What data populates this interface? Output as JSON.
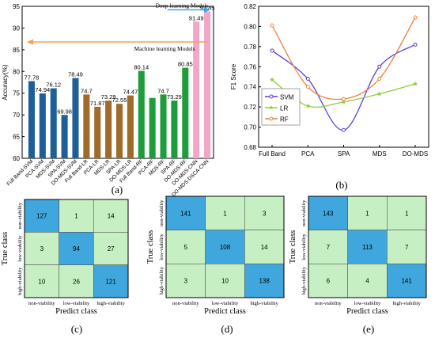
{
  "chart_data": [
    {
      "type": "bar",
      "panel_label": "(a)",
      "ylabel": "Accuracy(%)",
      "ylim": [
        60,
        95
      ],
      "yticks": [
        "60",
        "65",
        "70",
        "75",
        "80",
        "85",
        "90",
        "95"
      ],
      "annotations": {
        "ml": "Machine learning Models",
        "dl": "Deep learning Models"
      },
      "categories": [
        "Full Band-SVM",
        "PCA-SVM",
        "MDS-SVM",
        "SPA-SVM",
        "DO-MDS-SVM",
        "Full Band-LR",
        "PCA-LR",
        "MDS-LR",
        "SPA-LR",
        "DO-MDS-LR",
        "Full Band-RF",
        "PCA-RF",
        "MDS-RF",
        "SPA-RF",
        "DO-MDS-RF",
        "DO-MDS-CNN",
        "DO-MDS-DSCA-CNN"
      ],
      "values": [
        77.78,
        74.94,
        76.12,
        69.98,
        78.49,
        74.7,
        71.87,
        73.29,
        72.55,
        74.47,
        80.14,
        73.9,
        74.7,
        73.29,
        80.85,
        91.49,
        93.85
      ],
      "value_labels": [
        "77.78",
        "74.94",
        "76.12",
        "69.98",
        "78.49",
        "74.7",
        "71.87",
        "73.29",
        "72.55",
        "74.47",
        "80.14",
        "",
        "74.7",
        "73.29",
        "80.85",
        "91.49",
        "93.85"
      ],
      "colors": [
        "#1f5f99",
        "#1f5f99",
        "#1f5f99",
        "#1f5f99",
        "#1f5f99",
        "#a06a2a",
        "#a06a2a",
        "#a06a2a",
        "#a06a2a",
        "#a06a2a",
        "#1e9e3a",
        "#1e9e3a",
        "#1e9e3a",
        "#1e9e3a",
        "#1e9e3a",
        "#f4a6c8",
        "#f4a6c8"
      ]
    },
    {
      "type": "line",
      "panel_label": "(b)",
      "ylabel": "F1 Score",
      "ylim": [
        0.68,
        0.82
      ],
      "yticks": [
        "0.68",
        "0.70",
        "0.72",
        "0.74",
        "0.76",
        "0.78",
        "0.80",
        "0.82"
      ],
      "categories": [
        "Full Band",
        "PCA",
        "SPA",
        "MDS",
        "DO-MDS"
      ],
      "series": [
        {
          "name": "SVM",
          "color": "#5b3fd6",
          "marker": "circle",
          "values": [
            0.776,
            0.748,
            0.697,
            0.76,
            0.782
          ]
        },
        {
          "name": "LR",
          "color": "#8fcf3c",
          "marker": "star",
          "values": [
            0.747,
            0.721,
            0.725,
            0.733,
            0.743
          ]
        },
        {
          "name": "RF",
          "color": "#f0803c",
          "marker": "circle",
          "values": [
            0.801,
            0.74,
            0.728,
            0.748,
            0.809
          ]
        }
      ],
      "legend": "middle-left"
    },
    {
      "type": "heatmap",
      "panel_label": "(c)",
      "xlabel": "Predict class",
      "ylabel": "True class",
      "classes": [
        "non-viability",
        "low-viability",
        "high-viability"
      ],
      "matrix": [
        [
          127,
          1,
          14
        ],
        [
          3,
          94,
          27
        ],
        [
          10,
          26,
          121
        ]
      ]
    },
    {
      "type": "heatmap",
      "panel_label": "(d)",
      "xlabel": "Predict class",
      "ylabel": "True class",
      "classes": [
        "non-viability",
        "low-viability",
        "high-viability"
      ],
      "matrix": [
        [
          141,
          1,
          3
        ],
        [
          5,
          108,
          14
        ],
        [
          3,
          10,
          138
        ]
      ]
    },
    {
      "type": "heatmap",
      "panel_label": "(e)",
      "xlabel": "Predict class",
      "ylabel": "True class",
      "classes": [
        "non-viability",
        "low-viability",
        "high-viability"
      ],
      "matrix": [
        [
          143,
          1,
          1
        ],
        [
          7,
          113,
          7
        ],
        [
          6,
          4,
          141
        ]
      ]
    }
  ],
  "colors": {
    "diag": "#3fa7dd",
    "offdiag": "#c6f0c3"
  }
}
